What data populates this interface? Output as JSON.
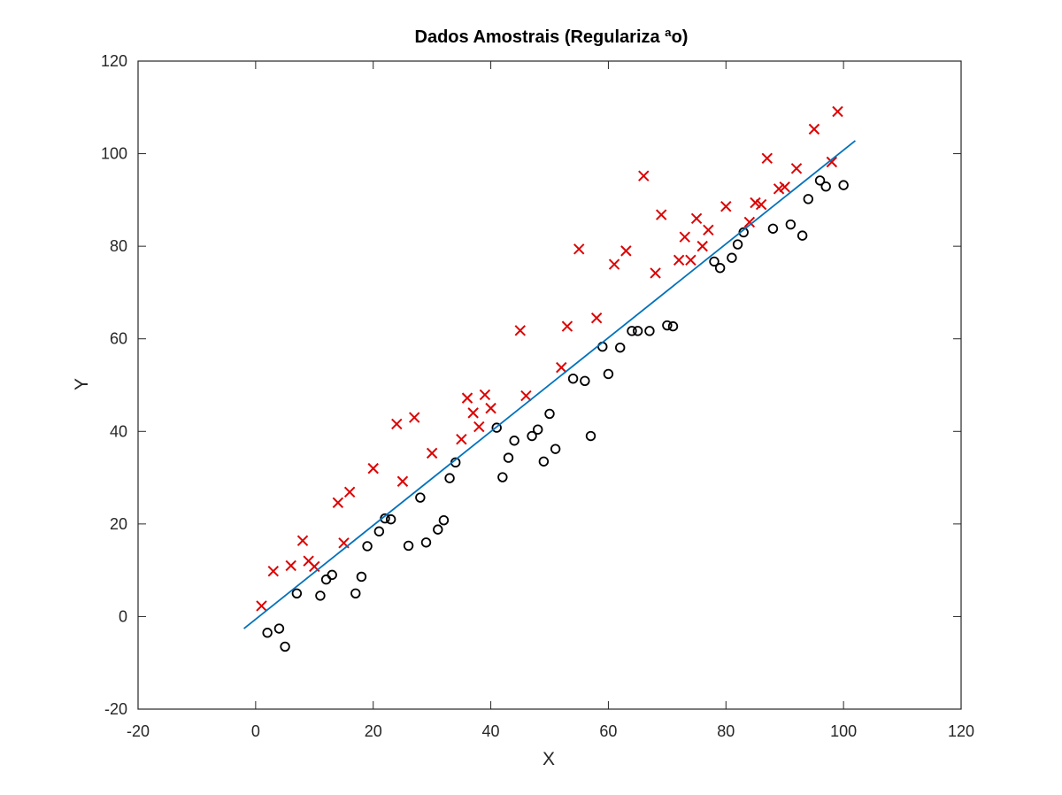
{
  "chart_data": {
    "type": "scatter",
    "title": "Dados Amostrais (Regulariza ªo)",
    "xlabel": "X",
    "ylabel": "Y",
    "xlim": [
      -20,
      120
    ],
    "ylim": [
      -20,
      120
    ],
    "xticks": [
      -20,
      0,
      20,
      40,
      60,
      80,
      100,
      120
    ],
    "yticks": [
      -20,
      0,
      20,
      40,
      60,
      80,
      100,
      120
    ],
    "grid": false,
    "colors": {
      "cross": "#dd0000",
      "circle": "#000000",
      "line": "#0072bd"
    },
    "series": [
      {
        "marker": "x",
        "points": [
          [
            1,
            2.3
          ],
          [
            3,
            9.8
          ],
          [
            6,
            11
          ],
          [
            8,
            16.4
          ],
          [
            9,
            12
          ],
          [
            10,
            10.8
          ],
          [
            14,
            24.6
          ],
          [
            15,
            15.9
          ],
          [
            16,
            26.9
          ],
          [
            20,
            32
          ],
          [
            24,
            41.6
          ],
          [
            25,
            29.2
          ],
          [
            27,
            43
          ],
          [
            30,
            35.3
          ],
          [
            35,
            38.3
          ],
          [
            36,
            47.2
          ],
          [
            37,
            44
          ],
          [
            38,
            41
          ],
          [
            39,
            47.9
          ],
          [
            40,
            45
          ],
          [
            45,
            61.8
          ],
          [
            46,
            47.7
          ],
          [
            52,
            53.8
          ],
          [
            53,
            62.7
          ],
          [
            55,
            79.4
          ],
          [
            58,
            64.5
          ],
          [
            61,
            76.1
          ],
          [
            63,
            79
          ],
          [
            66,
            95.2
          ],
          [
            68,
            74.2
          ],
          [
            69,
            86.8
          ],
          [
            72,
            77
          ],
          [
            73,
            82
          ],
          [
            74,
            77
          ],
          [
            75,
            86
          ],
          [
            76,
            80
          ],
          [
            77,
            83.5
          ],
          [
            80,
            88.6
          ],
          [
            84,
            85.2
          ],
          [
            85,
            89.4
          ],
          [
            86,
            89
          ],
          [
            87,
            99
          ],
          [
            89,
            92.4
          ],
          [
            90,
            92.8
          ],
          [
            92,
            96.8
          ],
          [
            95,
            105.3
          ],
          [
            98,
            98.2
          ],
          [
            99,
            109.1
          ]
        ]
      },
      {
        "marker": "o",
        "points": [
          [
            2,
            -3.5
          ],
          [
            4,
            -2.6
          ],
          [
            5,
            -6.5
          ],
          [
            7,
            5
          ],
          [
            11,
            4.5
          ],
          [
            12,
            8
          ],
          [
            13,
            9
          ],
          [
            17,
            5
          ],
          [
            18,
            8.6
          ],
          [
            19,
            15.2
          ],
          [
            21,
            18.4
          ],
          [
            22,
            21.2
          ],
          [
            23,
            21
          ],
          [
            26,
            15.3
          ],
          [
            28,
            25.7
          ],
          [
            29,
            16
          ],
          [
            31,
            18.8
          ],
          [
            32,
            20.8
          ],
          [
            33,
            29.9
          ],
          [
            34,
            33.3
          ],
          [
            41,
            40.8
          ],
          [
            42,
            30.1
          ],
          [
            43,
            34.3
          ],
          [
            44,
            38
          ],
          [
            47,
            39
          ],
          [
            48,
            40.4
          ],
          [
            49,
            33.5
          ],
          [
            50,
            43.8
          ],
          [
            51,
            36.2
          ],
          [
            54,
            51.4
          ],
          [
            56,
            50.9
          ],
          [
            57,
            39
          ],
          [
            59,
            58.3
          ],
          [
            60,
            52.4
          ],
          [
            62,
            58.1
          ],
          [
            64,
            61.7
          ],
          [
            65,
            61.7
          ],
          [
            67,
            61.7
          ],
          [
            70,
            62.9
          ],
          [
            71,
            62.7
          ],
          [
            78,
            76.7
          ],
          [
            79,
            75.3
          ],
          [
            81,
            77.5
          ],
          [
            82,
            80.4
          ],
          [
            83,
            83
          ],
          [
            88,
            83.8
          ],
          [
            91,
            84.7
          ],
          [
            93,
            82.3
          ],
          [
            94,
            90.2
          ],
          [
            96,
            94.2
          ],
          [
            97,
            92.9
          ],
          [
            100,
            93.2
          ]
        ]
      },
      {
        "marker": "line",
        "points": [
          [
            -2,
            -2.6
          ],
          [
            102,
            102.8
          ]
        ]
      }
    ]
  }
}
